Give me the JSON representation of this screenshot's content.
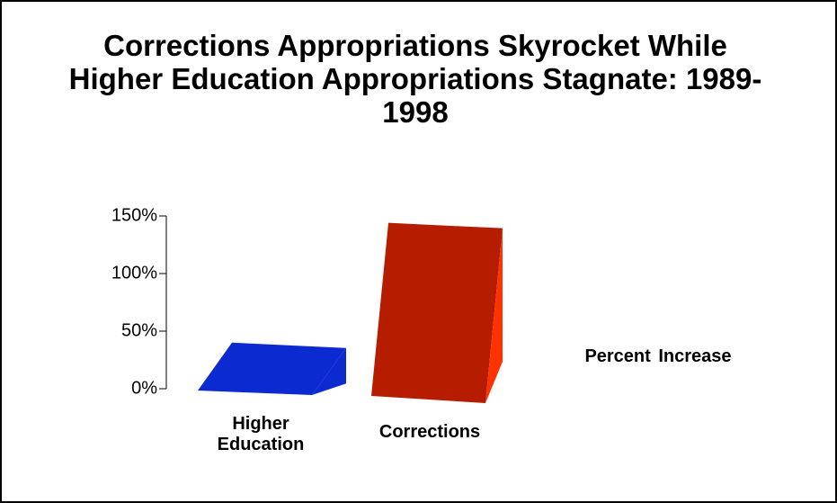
{
  "chart_data": {
    "type": "bar",
    "title": "Corrections Appropriations Skyrocket While Higher Education Appropriations Stagnate: 1989-1998",
    "categories": [
      "Higher Education",
      "Corrections"
    ],
    "series": [
      {
        "name": "Percent Increase",
        "values": [
          40,
          144
        ]
      }
    ],
    "colors": [
      "#0b2bd0",
      "#b51c00"
    ],
    "ylim": [
      0,
      150
    ],
    "yticks": [
      {
        "value": 0,
        "label": "0%"
      },
      {
        "value": 50,
        "label": "50%"
      },
      {
        "value": 100,
        "label": "100%"
      },
      {
        "value": 150,
        "label": "150%"
      }
    ]
  }
}
